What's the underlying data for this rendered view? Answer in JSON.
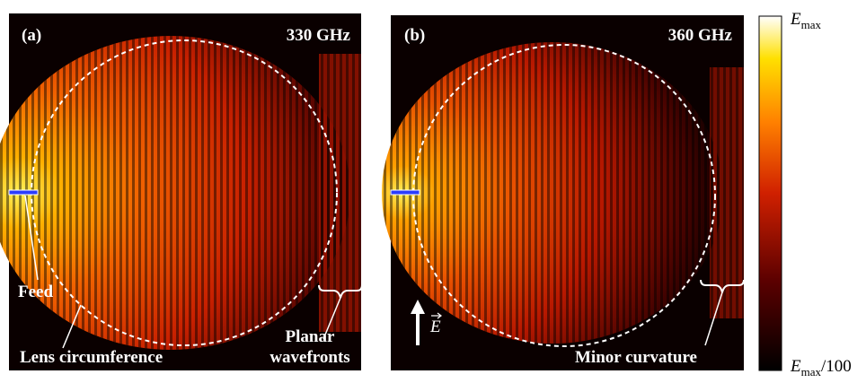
{
  "panels": [
    {
      "label": "(a)",
      "frequency": "330 GHz",
      "feed_label": "Feed",
      "circumference_label": "Lens circumference",
      "wavefront_label_lines": [
        "Planar",
        "wavefronts"
      ]
    },
    {
      "label": "(b)",
      "frequency": "360 GHz",
      "curvature_label": "Minor curvature",
      "field_label": "E"
    }
  ],
  "colorbar": {
    "top": {
      "symbol": "E",
      "subscript": "max"
    },
    "bottom": {
      "symbol": "E",
      "subscript": "max",
      "suffix": "/100"
    }
  }
}
